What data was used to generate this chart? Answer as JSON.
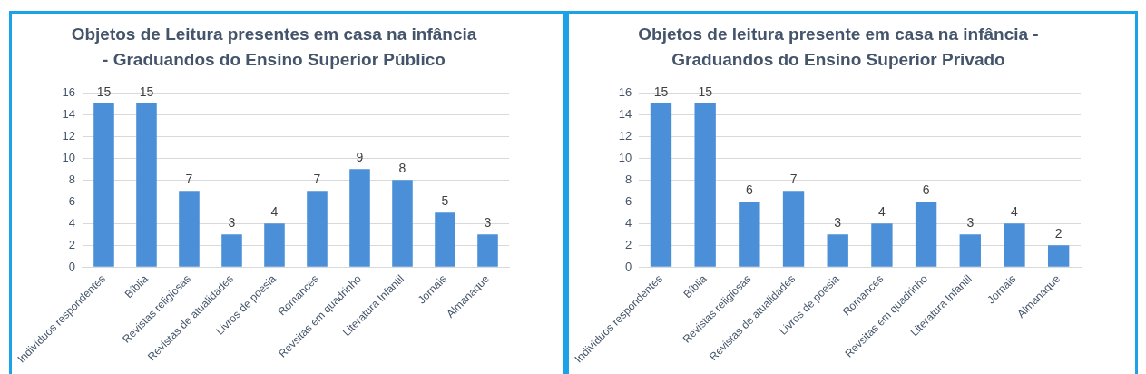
{
  "chart_data": [
    {
      "type": "bar",
      "title": "Objetos de Leitura presentes em casa na infância\n- Graduandos do Ensino Superior Público",
      "categories": [
        "Indivíduos respondentes",
        "Bíblia",
        "Revistas religiosas",
        "Revistas de atualidades",
        "Livros de poesia",
        "Romances",
        "Revsitas em quadrinho",
        "Literatura Infantil",
        "Jornais",
        "Almanaque"
      ],
      "values": [
        15,
        15,
        7,
        3,
        4,
        7,
        9,
        8,
        5,
        3
      ],
      "color": "#4a8fd8",
      "ylim": [
        0,
        16
      ],
      "yticks": [
        0,
        2,
        4,
        6,
        8,
        10,
        12,
        14,
        16
      ],
      "grid": "y",
      "data_labels": true
    },
    {
      "type": "bar",
      "title": "Objetos de leitura presente em casa na infância -\nGraduandos do Ensino Superior Privado",
      "categories": [
        "Indivíduos respondentes",
        "Bíblia",
        "Revistas religiosas",
        "Revistas de atualidades",
        "Livros de poesia",
        "Romances",
        "Revsitas em quadrinho",
        "Literatura Infantil",
        "Jornais",
        "Almanaque"
      ],
      "values": [
        15,
        15,
        6,
        7,
        3,
        4,
        6,
        3,
        4,
        2
      ],
      "color": "#4a8fd8",
      "ylim": [
        0,
        16
      ],
      "yticks": [
        0,
        2,
        4,
        6,
        8,
        10,
        12,
        14,
        16
      ],
      "grid": "y",
      "data_labels": true
    }
  ]
}
